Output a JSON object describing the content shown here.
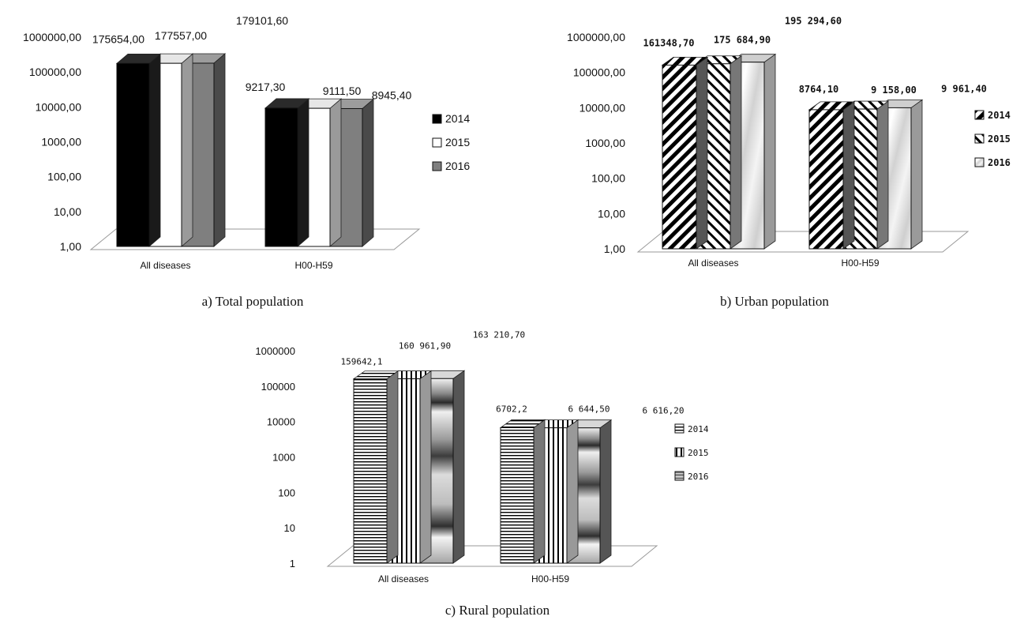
{
  "chart_data": [
    {
      "type": "bar",
      "caption": "a) Total population",
      "scale": "log",
      "ylim": [
        1,
        1000000
      ],
      "yticks": [
        "1,00",
        "10,00",
        "100,00",
        "1000,00",
        "10000,00",
        "100000,00",
        "1000000,00"
      ],
      "categories": [
        "All diseases",
        "H00-H59"
      ],
      "series": [
        {
          "name": "2014",
          "values": [
            175654.0,
            9217.3
          ],
          "labels": [
            "175654,00",
            "9217,30"
          ]
        },
        {
          "name": "2015",
          "values": [
            177557.0,
            9111.5
          ],
          "labels": [
            "177557,00",
            "9111,50"
          ]
        },
        {
          "name": "2016",
          "values": [
            179101.6,
            8945.4
          ],
          "labels": [
            "179101,60",
            "8945,40"
          ]
        }
      ],
      "legend": "right"
    },
    {
      "type": "bar",
      "caption": "b) Urban population",
      "scale": "log",
      "ylim": [
        1,
        1000000
      ],
      "yticks": [
        "1,00",
        "10,00",
        "100,00",
        "1000,00",
        "10000,00",
        "100000,00",
        "1000000,00"
      ],
      "categories": [
        "All diseases",
        "H00-H59"
      ],
      "series": [
        {
          "name": "2014",
          "values": [
            161348.7,
            8764.1
          ],
          "labels": [
            "161348,70",
            "8764,10"
          ]
        },
        {
          "name": "2015",
          "values": [
            175684.9,
            9158.0
          ],
          "labels": [
            "175 684,90",
            "9 158,00"
          ]
        },
        {
          "name": "2016",
          "values": [
            195294.6,
            9961.4
          ],
          "labels": [
            "195 294,60",
            "9 961,40"
          ]
        }
      ],
      "legend": "right"
    },
    {
      "type": "bar",
      "caption": "c) Rural population",
      "scale": "log",
      "ylim": [
        1,
        1000000
      ],
      "yticks": [
        "1",
        "10",
        "100",
        "1000",
        "10000",
        "100000",
        "1000000"
      ],
      "categories": [
        "All diseases",
        "H00-H59"
      ],
      "series": [
        {
          "name": "2014",
          "values": [
            159642.1,
            6702.2
          ],
          "labels": [
            "159642,1",
            "6702,2"
          ]
        },
        {
          "name": "2015",
          "values": [
            160961.9,
            6644.5
          ],
          "labels": [
            "160 961,90",
            "6 644,50"
          ]
        },
        {
          "name": "2016",
          "values": [
            163210.7,
            6616.2
          ],
          "labels": [
            "163 210,70",
            "6 616,20"
          ]
        }
      ],
      "legend": "right"
    }
  ],
  "colors": {
    "black": "#000000",
    "white": "#ffffff",
    "gray": "#808080",
    "dark_gray": "#3a3a3a",
    "floor": "#9a9a9a"
  }
}
